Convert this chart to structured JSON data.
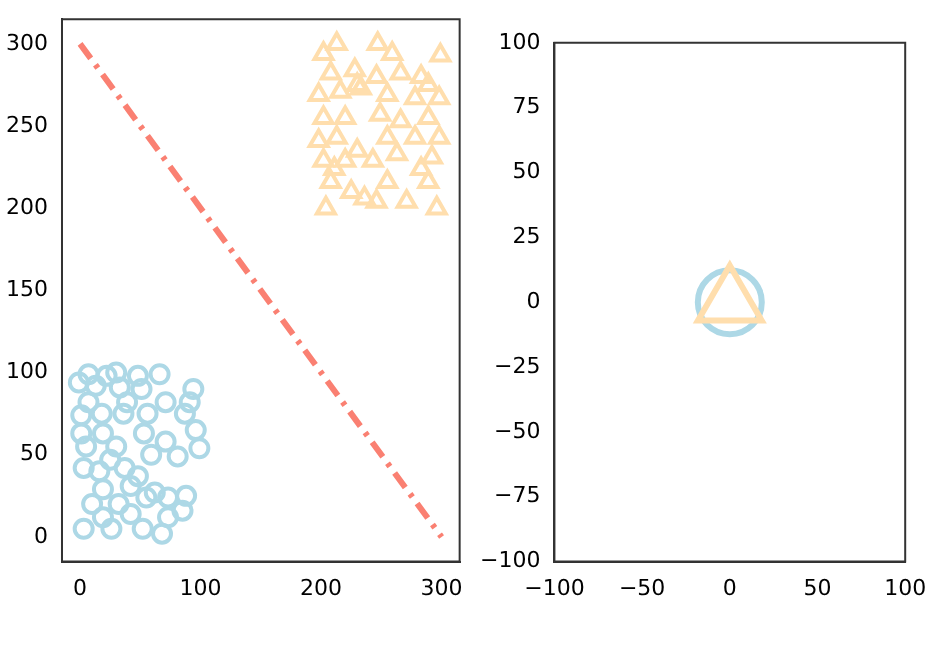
{
  "chart_data": [
    {
      "type": "scatter",
      "xlim": [
        -15,
        315
      ],
      "ylim": [
        -15,
        315
      ],
      "xticks": [
        0,
        100,
        200,
        300
      ],
      "yticks": [
        0,
        50,
        100,
        150,
        200,
        250,
        300
      ],
      "grid": false,
      "series": [
        {
          "type": "scatter",
          "marker": "circle",
          "color": "#add8e6",
          "x": [
            3,
            26,
            52,
            68,
            10,
            32,
            55,
            73,
            88,
            85,
            19,
            42,
            62,
            3,
            16,
            37,
            59,
            81,
            99,
            5,
            30,
            71,
            1,
            19,
            53,
            96,
            1,
            18,
            36,
            56,
            87,
            7,
            39,
            71,
            91,
            -1,
            13,
            33,
            51,
            94,
            7,
            22,
            30,
            48,
            66,
            25,
            48,
            19,
            73,
            42
          ],
          "values": [
            5,
            5,
            5,
            2,
            20,
            20,
            24,
            24,
            25,
            16,
            29,
            31,
            27,
            42,
            40,
            42,
            50,
            49,
            54,
            55,
            55,
            58,
            63,
            63,
            63,
            65,
            74,
            75,
            75,
            75,
            75,
            82,
            82,
            82,
            82,
            94,
            92,
            91,
            90,
            90,
            99,
            98,
            100,
            98,
            99,
            47,
            37,
            12,
            12,
            14
          ]
        },
        {
          "type": "scatter",
          "marker": "triangle",
          "color": "#ffdead",
          "x": [
            204,
            246,
            296,
            271,
            225,
            208,
            255,
            289,
            202,
            220,
            243,
            263,
            292,
            198,
            213,
            255,
            278,
            298,
            202,
            220,
            249,
            266,
            289,
            198,
            216,
            233,
            255,
            278,
            298,
            208,
            228,
            246,
            266,
            283,
            202,
            213,
            247,
            259,
            299,
            230,
            289,
            211,
            283,
            236,
            230
          ],
          "values": [
            200,
            204,
            200,
            204,
            210,
            216,
            216,
            216,
            229,
            229,
            229,
            233,
            231,
            241,
            243,
            243,
            243,
            243,
            255,
            255,
            257,
            253,
            255,
            269,
            271,
            273,
            269,
            267,
            267,
            282,
            284,
            280,
            282,
            280,
            294,
            300,
            300,
            294,
            293,
            275,
            275,
            224,
            224,
            206,
            235
          ]
        },
        {
          "type": "line",
          "marker": "none",
          "line_style": "dashdot",
          "color": "#fa8072",
          "x": [
            0,
            300
          ],
          "values": [
            300,
            0
          ]
        }
      ]
    },
    {
      "type": "scatter",
      "xlim": [
        -100,
        100
      ],
      "ylim": [
        -100,
        100
      ],
      "xticks": [
        -100,
        -50,
        0,
        50,
        100
      ],
      "yticks": [
        -100,
        -75,
        -50,
        -25,
        0,
        25,
        50,
        75,
        100
      ],
      "grid": false,
      "series": [
        {
          "type": "scatter",
          "marker": "circle",
          "color": "#add8e6",
          "x": [
            0
          ],
          "values": [
            0
          ]
        },
        {
          "type": "scatter",
          "marker": "triangle",
          "color": "#ffdead",
          "x": [
            0
          ],
          "values": [
            0
          ]
        }
      ]
    }
  ]
}
